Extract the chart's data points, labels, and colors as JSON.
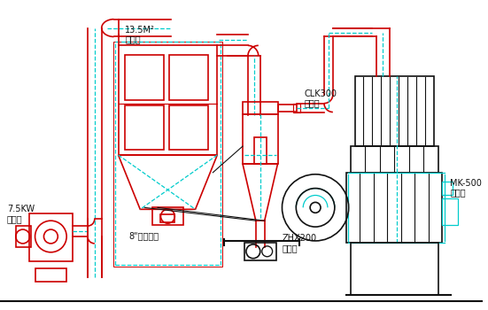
{
  "red": "#cc0000",
  "cyan": "#00cccc",
  "black": "#111111",
  "label_13_5": "13.5M²",
  "label_dust": "除尘器",
  "label_clk": "CLK300",
  "label_cyclone": "旋风器",
  "label_7_5kw": "7.5KW",
  "label_fan": "引风机",
  "label_valve": "8\"手动蝶阀",
  "label_zhx": "ZHX200",
  "label_discharge": "卸料阀",
  "label_mk": "MK-500",
  "label_crusher": "粉碎机"
}
